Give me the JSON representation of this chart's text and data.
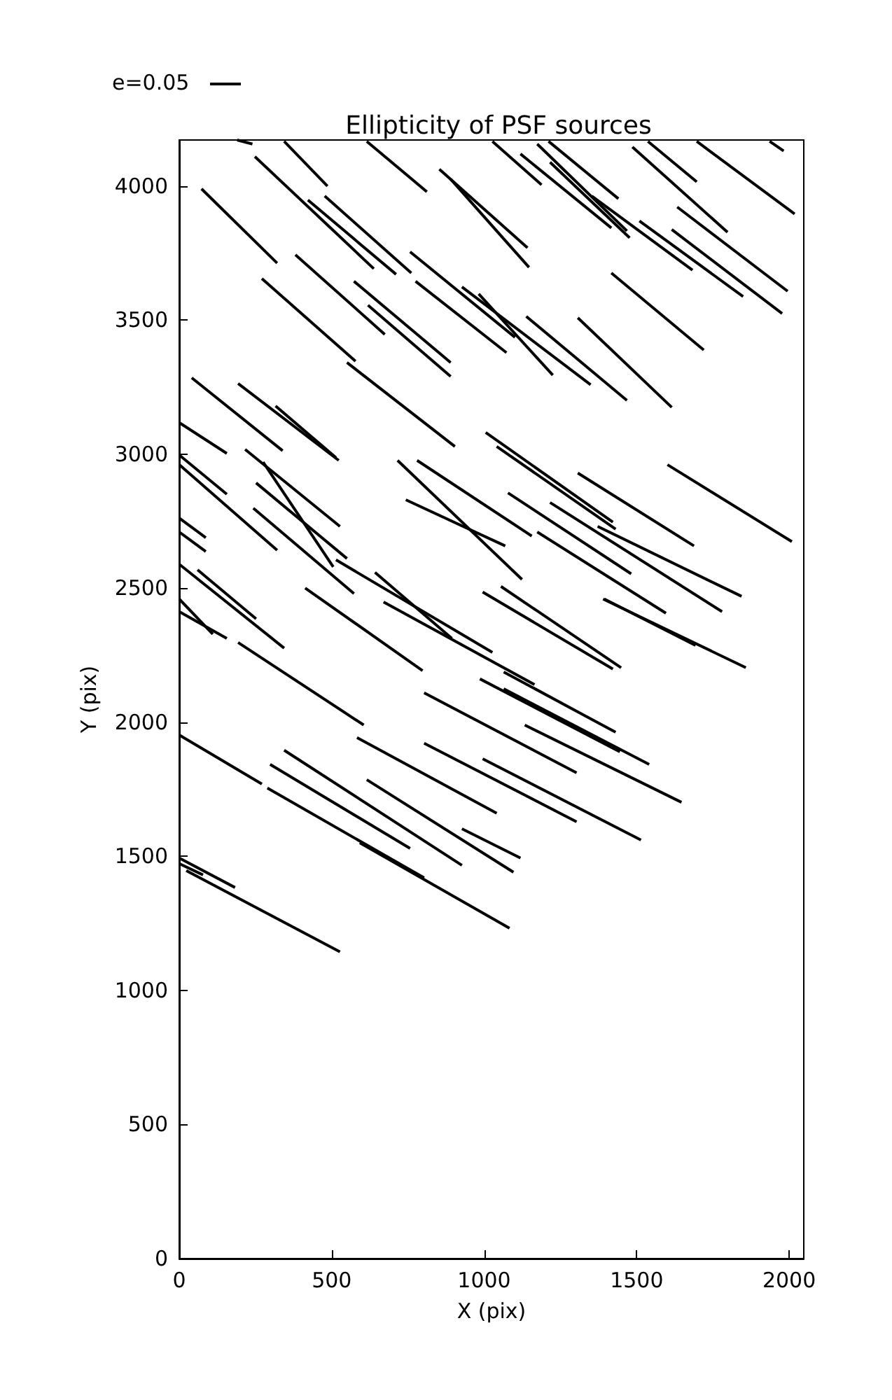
{
  "chart_data": {
    "type": "line",
    "title": "Ellipticity of PSF sources",
    "xlabel": "X (pix)",
    "ylabel": "Y (pix)",
    "annotations": [
      "e=0.05"
    ],
    "xlim": [
      0,
      2048
    ],
    "ylim": [
      0,
      4172
    ],
    "xticks": [
      0,
      500,
      1000,
      1500,
      2000
    ],
    "yticks": [
      0,
      500,
      1000,
      1500,
      2000,
      2500,
      3000,
      3500,
      4000
    ],
    "grid": false,
    "marker": "none",
    "line_style": "solid",
    "series": [
      {
        "color": "#000000",
        "x": [
          190,
          240
        ],
        "values": [
          4172,
          4157
        ]
      },
      {
        "color": "#000000",
        "x": [
          344,
          486
        ],
        "values": [
          4167,
          4000
        ]
      },
      {
        "color": "#000000",
        "x": [
          615,
          812
        ],
        "values": [
          4167,
          3979
        ]
      },
      {
        "color": "#000000",
        "x": [
          73,
          321
        ],
        "values": [
          3990,
          3713
        ]
      },
      {
        "color": "#000000",
        "x": [
          248,
          638
        ],
        "values": [
          4110,
          3692
        ]
      },
      {
        "color": "#000000",
        "x": [
          422,
          711
        ],
        "values": [
          3948,
          3671
        ]
      },
      {
        "color": "#000000",
        "x": [
          477,
          761
        ],
        "values": [
          3963,
          3676
        ]
      },
      {
        "color": "#000000",
        "x": [
          381,
          674
        ],
        "values": [
          3744,
          3447
        ]
      },
      {
        "color": "#000000",
        "x": [
          271,
          578
        ],
        "values": [
          3655,
          3347
        ]
      },
      {
        "color": "#000000",
        "x": [
          573,
          890
        ],
        "values": [
          3645,
          3342
        ]
      },
      {
        "color": "#000000",
        "x": [
          619,
          890
        ],
        "values": [
          3556,
          3290
        ]
      },
      {
        "color": "#000000",
        "x": [
          757,
          1101
        ],
        "values": [
          3755,
          3436
        ]
      },
      {
        "color": "#000000",
        "x": [
          775,
          1073
        ],
        "values": [
          3645,
          3379
        ]
      },
      {
        "color": "#000000",
        "x": [
          853,
          1142
        ],
        "values": [
          4063,
          3770
        ]
      },
      {
        "color": "#000000",
        "x": [
          890,
          1147
        ],
        "values": [
          4026,
          3697
        ]
      },
      {
        "color": "#000000",
        "x": [
          1027,
          1188
        ],
        "values": [
          4167,
          4005
        ]
      },
      {
        "color": "#000000",
        "x": [
          1119,
          1417
        ],
        "values": [
          4120,
          3844
        ]
      },
      {
        "color": "#000000",
        "x": [
          1174,
          1468
        ],
        "values": [
          4157,
          3833
        ]
      },
      {
        "color": "#000000",
        "x": [
          1211,
          1440
        ],
        "values": [
          4167,
          3953
        ]
      },
      {
        "color": "#000000",
        "x": [
          1216,
          1477
        ],
        "values": [
          4089,
          3807
        ]
      },
      {
        "color": "#000000",
        "x": [
          1353,
          1683
        ],
        "values": [
          3963,
          3687
        ]
      },
      {
        "color": "#000000",
        "x": [
          1486,
          1798
        ],
        "values": [
          4146,
          3828
        ]
      },
      {
        "color": "#000000",
        "x": [
          1537,
          1697
        ],
        "values": [
          4167,
          4016
        ]
      },
      {
        "color": "#000000",
        "x": [
          1697,
          2018
        ],
        "values": [
          4167,
          3896
        ]
      },
      {
        "color": "#000000",
        "x": [
          1936,
          1982
        ],
        "values": [
          4167,
          4131
        ]
      },
      {
        "color": "#000000",
        "x": [
          1633,
          1995
        ],
        "values": [
          3922,
          3608
        ]
      },
      {
        "color": "#000000",
        "x": [
          1509,
          1849
        ],
        "values": [
          3870,
          3588
        ]
      },
      {
        "color": "#000000",
        "x": [
          1615,
          1977
        ],
        "values": [
          3838,
          3525
        ]
      },
      {
        "color": "#000000",
        "x": [
          1417,
          1720
        ],
        "values": [
          3676,
          3389
        ]
      },
      {
        "color": "#000000",
        "x": [
          982,
          1225
        ],
        "values": [
          3598,
          3295
        ]
      },
      {
        "color": "#000000",
        "x": [
          927,
          1349
        ],
        "values": [
          3624,
          3259
        ]
      },
      {
        "color": "#000000",
        "x": [
          1138,
          1468
        ],
        "values": [
          3514,
          3201
        ]
      },
      {
        "color": "#000000",
        "x": [
          1307,
          1615
        ],
        "values": [
          3509,
          3175
        ]
      },
      {
        "color": "#000000",
        "x": [
          41,
          339
        ],
        "values": [
          3285,
          3013
        ]
      },
      {
        "color": "#000000",
        "x": [
          193,
          523
        ],
        "values": [
          3264,
          2977
        ]
      },
      {
        "color": "#000000",
        "x": [
          316,
          514
        ],
        "values": [
          3180,
          2987
        ]
      },
      {
        "color": "#000000",
        "x": [
          550,
          904
        ],
        "values": [
          3342,
          3029
        ]
      },
      {
        "color": "#000000",
        "x": [
          0,
          156
        ],
        "values": [
          3118,
          3003
        ]
      },
      {
        "color": "#000000",
        "x": [
          0,
          156
        ],
        "values": [
          2997,
          2851
        ]
      },
      {
        "color": "#000000",
        "x": [
          0,
          321
        ],
        "values": [
          2961,
          2642
        ]
      },
      {
        "color": "#000000",
        "x": [
          216,
          527
        ],
        "values": [
          3018,
          2731
        ]
      },
      {
        "color": "#000000",
        "x": [
          275,
          505
        ],
        "values": [
          2971,
          2580
        ]
      },
      {
        "color": "#000000",
        "x": [
          252,
          550
        ],
        "values": [
          2893,
          2611
        ]
      },
      {
        "color": "#000000",
        "x": [
          514,
          1027
        ],
        "values": [
          2606,
          2261
        ]
      },
      {
        "color": "#000000",
        "x": [
          243,
          573
        ],
        "values": [
          2799,
          2480
        ]
      },
      {
        "color": "#000000",
        "x": [
          0,
          87
        ],
        "values": [
          2762,
          2689
        ]
      },
      {
        "color": "#000000",
        "x": [
          0,
          87
        ],
        "values": [
          2710,
          2637
        ]
      },
      {
        "color": "#000000",
        "x": [
          0,
          344
        ],
        "values": [
          2590,
          2277
        ]
      },
      {
        "color": "#000000",
        "x": [
          60,
          252
        ],
        "values": [
          2569,
          2386
        ]
      },
      {
        "color": "#000000",
        "x": [
          0,
          110
        ],
        "values": [
          2460,
          2329
        ]
      },
      {
        "color": "#000000",
        "x": [
          0,
          156
        ],
        "values": [
          2413,
          2313
        ]
      },
      {
        "color": "#000000",
        "x": [
          193,
          605
        ],
        "values": [
          2298,
          1990
        ]
      },
      {
        "color": "#000000",
        "x": [
          413,
          798
        ],
        "values": [
          2501,
          2193
        ]
      },
      {
        "color": "#000000",
        "x": [
          716,
          1124
        ],
        "values": [
          2977,
          2533
        ]
      },
      {
        "color": "#000000",
        "x": [
          780,
          1156
        ],
        "values": [
          2977,
          2695
        ]
      },
      {
        "color": "#000000",
        "x": [
          743,
          1069
        ],
        "values": [
          2830,
          2658
        ]
      },
      {
        "color": "#000000",
        "x": [
          642,
          894
        ],
        "values": [
          2559,
          2313
        ]
      },
      {
        "color": "#000000",
        "x": [
          670,
          1165
        ],
        "values": [
          2449,
          2141
        ]
      },
      {
        "color": "#000000",
        "x": [
          1005,
          1422
        ],
        "values": [
          3081,
          2747
        ]
      },
      {
        "color": "#000000",
        "x": [
          1041,
          1431
        ],
        "values": [
          3029,
          2721
        ]
      },
      {
        "color": "#000000",
        "x": [
          1307,
          1688
        ],
        "values": [
          2930,
          2658
        ]
      },
      {
        "color": "#000000",
        "x": [
          1601,
          2009
        ],
        "values": [
          2961,
          2674
        ]
      },
      {
        "color": "#000000",
        "x": [
          1078,
          1482
        ],
        "values": [
          2856,
          2554
        ]
      },
      {
        "color": "#000000",
        "x": [
          1216,
          1780
        ],
        "values": [
          2820,
          2413
        ]
      },
      {
        "color": "#000000",
        "x": [
          1372,
          1844
        ],
        "values": [
          2731,
          2470
        ]
      },
      {
        "color": "#000000",
        "x": [
          1174,
          1596
        ],
        "values": [
          2710,
          2407
        ]
      },
      {
        "color": "#000000",
        "x": [
          1390,
          1858
        ],
        "values": [
          2460,
          2204
        ]
      },
      {
        "color": "#000000",
        "x": [
          1394,
          1693
        ],
        "values": [
          2460,
          2287
        ]
      },
      {
        "color": "#000000",
        "x": [
          995,
          1422
        ],
        "values": [
          2486,
          2199
        ]
      },
      {
        "color": "#000000",
        "x": [
          1055,
          1449
        ],
        "values": [
          2507,
          2204
        ]
      },
      {
        "color": "#000000",
        "x": [
          1064,
          1431
        ],
        "values": [
          2188,
          1963
        ]
      },
      {
        "color": "#000000",
        "x": [
          986,
          1445
        ],
        "values": [
          2162,
          1890
        ]
      },
      {
        "color": "#000000",
        "x": [
          1064,
          1541
        ],
        "values": [
          2125,
          1843
        ]
      },
      {
        "color": "#000000",
        "x": [
          1133,
          1647
        ],
        "values": [
          1990,
          1702
        ]
      },
      {
        "color": "#000000",
        "x": [
          803,
          1303
        ],
        "values": [
          2110,
          1812
        ]
      },
      {
        "color": "#000000",
        "x": [
          995,
          1514
        ],
        "values": [
          1864,
          1561
        ]
      },
      {
        "color": "#000000",
        "x": [
          803,
          1303
        ],
        "values": [
          1922,
          1629
        ]
      },
      {
        "color": "#000000",
        "x": [
          583,
          1041
        ],
        "values": [
          1943,
          1661
        ]
      },
      {
        "color": "#000000",
        "x": [
          615,
          1096
        ],
        "values": [
          1786,
          1441
        ]
      },
      {
        "color": "#000000",
        "x": [
          927,
          1119
        ],
        "values": [
          1603,
          1494
        ]
      },
      {
        "color": "#000000",
        "x": [
          592,
          1083
        ],
        "values": [
          1551,
          1232
        ]
      },
      {
        "color": "#000000",
        "x": [
          0,
          271
        ],
        "values": [
          1953,
          1770
        ]
      },
      {
        "color": "#000000",
        "x": [
          344,
          927
        ],
        "values": [
          1896,
          1467
        ]
      },
      {
        "color": "#000000",
        "x": [
          298,
          757
        ],
        "values": [
          1843,
          1530
        ]
      },
      {
        "color": "#000000",
        "x": [
          289,
          803
        ],
        "values": [
          1755,
          1420
        ]
      },
      {
        "color": "#000000",
        "x": [
          0,
          183
        ],
        "values": [
          1494,
          1384
        ]
      },
      {
        "color": "#000000",
        "x": [
          23,
          527
        ],
        "values": [
          1447,
          1144
        ]
      },
      {
        "color": "#000000",
        "x": [
          0,
          78
        ],
        "values": [
          1473,
          1431
        ]
      }
    ]
  }
}
